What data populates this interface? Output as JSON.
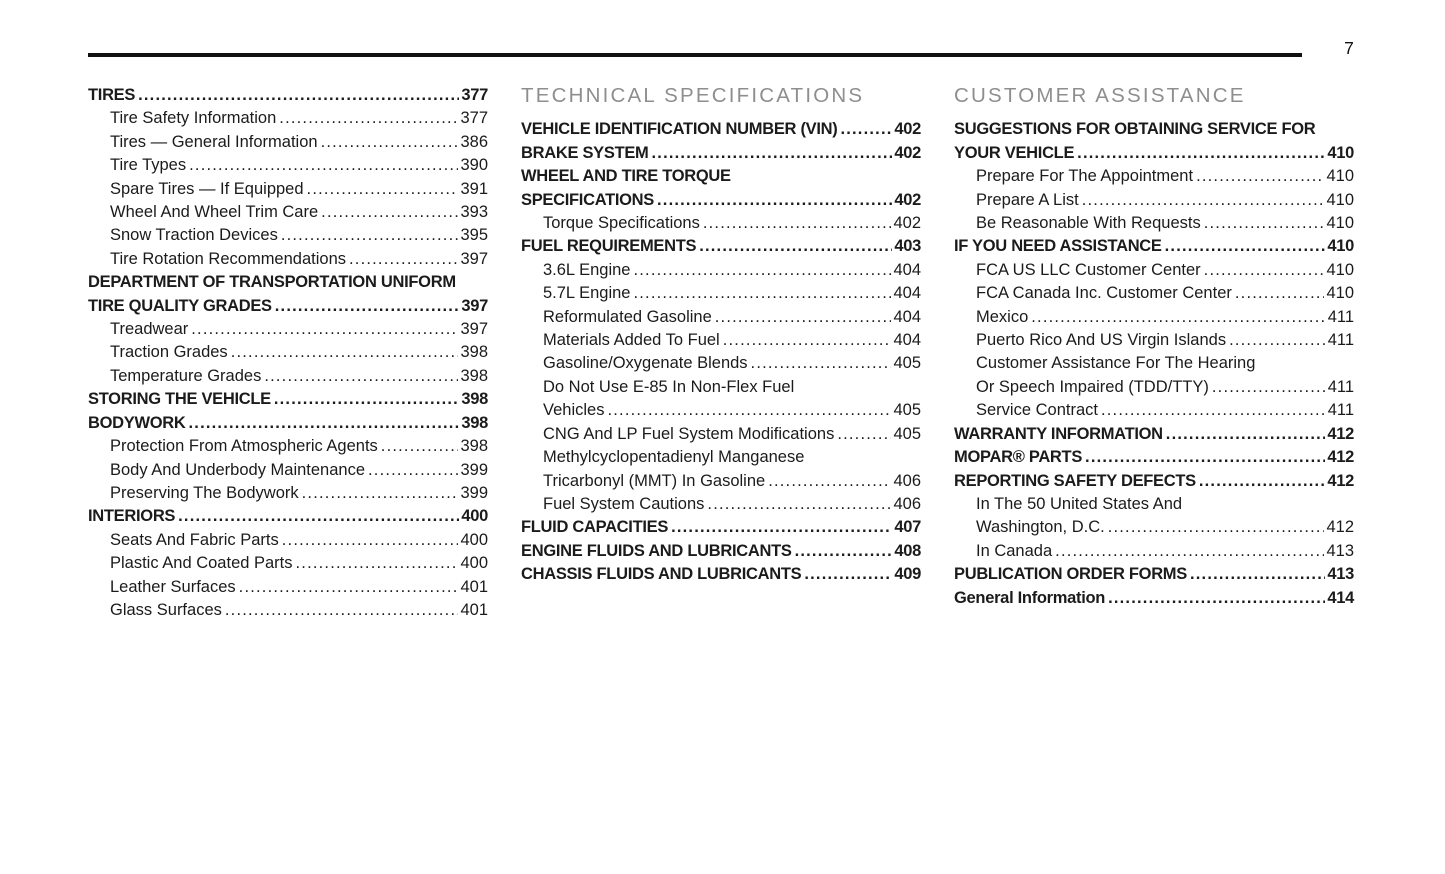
{
  "folio": "7",
  "colors": {
    "text": "#1b1b1b",
    "section_header_gray": "#8e8e8e",
    "rule_black": "#101010",
    "background": "#ffffff"
  },
  "columns": [
    {
      "header": null,
      "entries": [
        {
          "label": "TIRES",
          "page": "377",
          "bold": true,
          "indent": 0
        },
        {
          "label": "Tire Safety Information",
          "page": "377",
          "bold": false,
          "indent": 1
        },
        {
          "label": "Tires — General Information",
          "page": "386",
          "bold": false,
          "indent": 1
        },
        {
          "label": "Tire Types",
          "page": "390",
          "bold": false,
          "indent": 1
        },
        {
          "label": "Spare Tires — If Equipped",
          "page": "391",
          "bold": false,
          "indent": 1
        },
        {
          "label": "Wheel And Wheel Trim Care",
          "page": "393",
          "bold": false,
          "indent": 1
        },
        {
          "label": "Snow Traction Devices",
          "page": "395",
          "bold": false,
          "indent": 1
        },
        {
          "label": "Tire Rotation Recommendations",
          "page": "397",
          "bold": false,
          "indent": 1
        },
        {
          "label": "DEPARTMENT OF TRANSPORTATION UNIFORM",
          "page": null,
          "bold": true,
          "indent": 0
        },
        {
          "label": "TIRE QUALITY GRADES",
          "page": "397",
          "bold": true,
          "indent": 0
        },
        {
          "label": "Treadwear",
          "page": "397",
          "bold": false,
          "indent": 1
        },
        {
          "label": "Traction Grades",
          "page": "398",
          "bold": false,
          "indent": 1
        },
        {
          "label": "Temperature Grades",
          "page": "398",
          "bold": false,
          "indent": 1
        },
        {
          "label": "STORING THE VEHICLE",
          "page": "398",
          "bold": true,
          "indent": 0
        },
        {
          "label": "BODYWORK",
          "page": "398",
          "bold": true,
          "indent": 0
        },
        {
          "label": "Protection From Atmospheric Agents",
          "page": "398",
          "bold": false,
          "indent": 1
        },
        {
          "label": "Body And Underbody Maintenance",
          "page": "399",
          "bold": false,
          "indent": 1
        },
        {
          "label": "Preserving The Bodywork",
          "page": "399",
          "bold": false,
          "indent": 1
        },
        {
          "label": "INTERIORS",
          "page": "400",
          "bold": true,
          "indent": 0
        },
        {
          "label": "Seats And Fabric Parts",
          "page": "400",
          "bold": false,
          "indent": 1
        },
        {
          "label": "Plastic And Coated Parts",
          "page": "400",
          "bold": false,
          "indent": 1
        },
        {
          "label": "Leather Surfaces",
          "page": "401",
          "bold": false,
          "indent": 1
        },
        {
          "label": "Glass Surfaces",
          "page": "401",
          "bold": false,
          "indent": 1
        }
      ]
    },
    {
      "header": "TECHNICAL SPECIFICATIONS",
      "entries": [
        {
          "label": "VEHICLE IDENTIFICATION NUMBER (VIN)",
          "page": "402",
          "bold": true,
          "indent": 0
        },
        {
          "label": "BRAKE SYSTEM",
          "page": "402",
          "bold": true,
          "indent": 0
        },
        {
          "label": "WHEEL AND TIRE TORQUE",
          "page": null,
          "bold": true,
          "indent": 0
        },
        {
          "label": "SPECIFICATIONS",
          "page": "402",
          "bold": true,
          "indent": 0
        },
        {
          "label": "Torque Specifications",
          "page": "402",
          "bold": false,
          "indent": 1
        },
        {
          "label": "FUEL REQUIREMENTS",
          "page": "403",
          "bold": true,
          "indent": 0
        },
        {
          "label": "3.6L Engine",
          "page": "404",
          "bold": false,
          "indent": 1
        },
        {
          "label": "5.7L Engine",
          "page": "404",
          "bold": false,
          "indent": 1
        },
        {
          "label": "Reformulated Gasoline",
          "page": "404",
          "bold": false,
          "indent": 1
        },
        {
          "label": "Materials Added To Fuel",
          "page": "404",
          "bold": false,
          "indent": 1
        },
        {
          "label": "Gasoline/Oxygenate Blends",
          "page": "405",
          "bold": false,
          "indent": 1
        },
        {
          "label": "Do Not Use E-85 In Non-Flex Fuel",
          "page": null,
          "bold": false,
          "indent": 1
        },
        {
          "label": "Vehicles",
          "page": "405",
          "bold": false,
          "indent": 1
        },
        {
          "label": "CNG And LP Fuel System Modifications",
          "page": "405",
          "bold": false,
          "indent": 1
        },
        {
          "label": "Methylcyclopentadienyl Manganese",
          "page": null,
          "bold": false,
          "indent": 1
        },
        {
          "label": "Tricarbonyl (MMT) In Gasoline",
          "page": "406",
          "bold": false,
          "indent": 1
        },
        {
          "label": "Fuel System Cautions",
          "page": "406",
          "bold": false,
          "indent": 1
        },
        {
          "label": "FLUID CAPACITIES",
          "page": "407",
          "bold": true,
          "indent": 0
        },
        {
          "label": "ENGINE FLUIDS AND LUBRICANTS",
          "page": "408",
          "bold": true,
          "indent": 0
        },
        {
          "label": "CHASSIS FLUIDS AND LUBRICANTS",
          "page": "409",
          "bold": true,
          "indent": 0
        }
      ]
    },
    {
      "header": "CUSTOMER ASSISTANCE",
      "entries": [
        {
          "label": "SUGGESTIONS FOR OBTAINING SERVICE FOR",
          "page": null,
          "bold": true,
          "indent": 0
        },
        {
          "label": "YOUR VEHICLE",
          "page": "410",
          "bold": true,
          "indent": 0
        },
        {
          "label": "Prepare For The Appointment",
          "page": "410",
          "bold": false,
          "indent": 1
        },
        {
          "label": "Prepare A List",
          "page": "410",
          "bold": false,
          "indent": 1
        },
        {
          "label": "Be Reasonable With Requests",
          "page": "410",
          "bold": false,
          "indent": 1
        },
        {
          "label": "IF YOU NEED ASSISTANCE",
          "page": "410",
          "bold": true,
          "indent": 0
        },
        {
          "label": "FCA US LLC Customer Center",
          "page": "410",
          "bold": false,
          "indent": 1
        },
        {
          "label": "FCA Canada Inc. Customer Center",
          "page": "410",
          "bold": false,
          "indent": 1
        },
        {
          "label": "Mexico",
          "page": "411",
          "bold": false,
          "indent": 1
        },
        {
          "label": "Puerto Rico And US Virgin Islands",
          "page": "411",
          "bold": false,
          "indent": 1
        },
        {
          "label": "Customer Assistance For The Hearing",
          "page": null,
          "bold": false,
          "indent": 1
        },
        {
          "label": "Or Speech Impaired (TDD/TTY)",
          "page": "411",
          "bold": false,
          "indent": 1
        },
        {
          "label": "Service Contract",
          "page": "411",
          "bold": false,
          "indent": 1
        },
        {
          "label": "WARRANTY INFORMATION",
          "page": "412",
          "bold": true,
          "indent": 0
        },
        {
          "label": "MOPAR® PARTS",
          "page": "412",
          "bold": true,
          "indent": 0
        },
        {
          "label": "REPORTING SAFETY DEFECTS",
          "page": "412",
          "bold": true,
          "indent": 0
        },
        {
          "label": "In The 50 United States And",
          "page": null,
          "bold": false,
          "indent": 1
        },
        {
          "label": "Washington, D.C.",
          "page": "412",
          "bold": false,
          "indent": 1
        },
        {
          "label": "In Canada",
          "page": "413",
          "bold": false,
          "indent": 1
        },
        {
          "label": "PUBLICATION ORDER FORMS",
          "page": "413",
          "bold": true,
          "indent": 0
        },
        {
          "label": "General Information",
          "page": "414",
          "bold": true,
          "indent": 0
        }
      ]
    }
  ]
}
